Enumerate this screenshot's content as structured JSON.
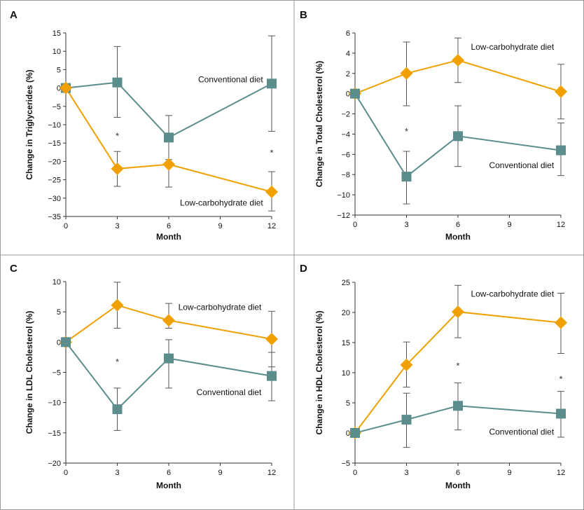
{
  "colors": {
    "conventional": "#5b8d8c",
    "low_carb": "#f0a000",
    "error_bar": "#555555",
    "axis": "#333333",
    "frame": "#999999"
  },
  "markers": {
    "conventional": "square",
    "low_carb": "diamond"
  },
  "chart_data": [
    {
      "type": "line",
      "panel": "A",
      "xlabel": "Month",
      "ylabel": "Change in Triglycerides (%)",
      "x": [
        0,
        3,
        6,
        12
      ],
      "xticks": [
        0,
        3,
        6,
        9,
        12
      ],
      "xlim": [
        0,
        12
      ],
      "ylim": [
        -35,
        15
      ],
      "yticks": [
        15,
        10,
        5,
        0,
        -5,
        -10,
        -15,
        -20,
        -25,
        -30,
        -35
      ],
      "series": [
        {
          "key": "conventional",
          "name": "Conventional diet",
          "values": [
            0,
            1.5,
            -13.5,
            1.2
          ],
          "err_low": [
            0,
            -8,
            -19.5,
            -11.8
          ],
          "err_high": [
            0,
            11.3,
            -7.5,
            14.2
          ]
        },
        {
          "key": "low_carb",
          "name": "Low-carbohydrate diet",
          "values": [
            0,
            -22,
            -20.8,
            -28.3
          ],
          "err_low": [
            0,
            -26.8,
            -27,
            -33.5
          ],
          "err_high": [
            0,
            -17.3,
            -14.5,
            -22.8
          ]
        }
      ],
      "significance": [
        {
          "x": 3,
          "y": -13,
          "text": "*"
        },
        {
          "x": 12,
          "y": -17.5,
          "text": "*"
        }
      ],
      "labels": [
        {
          "key": "conventional",
          "text": "Conventional diet",
          "x": 11.5,
          "y": 2.3,
          "anchor": "end"
        },
        {
          "key": "low_carb",
          "text": "Low-carbohydrate diet",
          "x": 11.5,
          "y": -31.3,
          "anchor": "end"
        }
      ]
    },
    {
      "type": "line",
      "panel": "B",
      "xlabel": "Month",
      "ylabel": "Change in Total Cholesterol (%)",
      "x": [
        0,
        3,
        6,
        12
      ],
      "xticks": [
        0,
        3,
        6,
        9,
        12
      ],
      "xlim": [
        0,
        12
      ],
      "ylim": [
        -12,
        6
      ],
      "yticks": [
        6,
        4,
        2,
        0,
        -2,
        -4,
        -6,
        -8,
        -10,
        -12
      ],
      "series": [
        {
          "key": "low_carb",
          "name": "Low-carbohydrate diet",
          "values": [
            0,
            2,
            3.3,
            0.2
          ],
          "err_low": [
            0,
            -1.2,
            1.1,
            -2.5
          ],
          "err_high": [
            0,
            5.1,
            5.5,
            2.9
          ]
        },
        {
          "key": "conventional",
          "name": "Conventional diet",
          "values": [
            0,
            -8.2,
            -4.2,
            -5.6
          ],
          "err_low": [
            0,
            -10.9,
            -7.2,
            -8.1
          ],
          "err_high": [
            0,
            -5.7,
            -1.2,
            -2.9
          ]
        }
      ],
      "significance": [
        {
          "x": 3,
          "y": -3.7,
          "text": "*"
        }
      ],
      "labels": [
        {
          "key": "low_carb",
          "text": "Low-carbohydrate diet",
          "x": 11.6,
          "y": 4.6,
          "anchor": "end"
        },
        {
          "key": "conventional",
          "text": "Conventional diet",
          "x": 11.6,
          "y": -7.1,
          "anchor": "end"
        }
      ]
    },
    {
      "type": "line",
      "panel": "C",
      "xlabel": "Month",
      "ylabel": "Change in LDL Cholesterol (%)",
      "x": [
        0,
        3,
        6,
        12
      ],
      "xticks": [
        0,
        3,
        6,
        9,
        12
      ],
      "xlim": [
        0,
        12
      ],
      "ylim": [
        -20,
        10
      ],
      "yticks": [
        10,
        5,
        0,
        -5,
        -10,
        -15,
        -20
      ],
      "series": [
        {
          "key": "low_carb",
          "name": "Low-carbohydrate diet",
          "values": [
            0,
            6.1,
            3.6,
            0.5
          ],
          "err_low": [
            0,
            2.3,
            2.3,
            -4.1
          ],
          "err_high": [
            0,
            9.9,
            6.4,
            5.1
          ]
        },
        {
          "key": "conventional",
          "name": "Conventional diet",
          "values": [
            0,
            -11.1,
            -2.7,
            -5.6
          ],
          "err_low": [
            0,
            -14.6,
            -7.6,
            -9.7
          ],
          "err_high": [
            0,
            -7.6,
            0.4,
            -1.7
          ]
        }
      ],
      "significance": [
        {
          "x": 3,
          "y": -3.2,
          "text": "*"
        }
      ],
      "labels": [
        {
          "key": "low_carb",
          "text": "Low-carbohydrate diet",
          "x": 11.4,
          "y": 5.8,
          "anchor": "end"
        },
        {
          "key": "conventional",
          "text": "Conventional diet",
          "x": 11.4,
          "y": -8.3,
          "anchor": "end"
        }
      ]
    },
    {
      "type": "line",
      "panel": "D",
      "xlabel": "Month",
      "ylabel": "Change in HDL Cholesterol (%)",
      "x": [
        0,
        3,
        6,
        12
      ],
      "xticks": [
        0,
        3,
        6,
        9,
        12
      ],
      "xlim": [
        0,
        12
      ],
      "ylim": [
        -5,
        25
      ],
      "yticks": [
        25,
        20,
        15,
        10,
        5,
        0,
        -5
      ],
      "series": [
        {
          "key": "low_carb",
          "name": "Low-carbohydrate diet",
          "values": [
            0,
            11.3,
            20.1,
            18.3
          ],
          "err_low": [
            0,
            7.6,
            15.8,
            13.2
          ],
          "err_high": [
            0,
            15.1,
            24.5,
            23.2
          ]
        },
        {
          "key": "conventional",
          "name": "Conventional diet",
          "values": [
            0,
            2.2,
            4.5,
            3.2
          ],
          "err_low": [
            0,
            -2.4,
            0.5,
            -0.7
          ],
          "err_high": [
            0,
            6.6,
            8.3,
            6.9
          ]
        }
      ],
      "significance": [
        {
          "x": 6,
          "y": 11.2,
          "text": "*"
        },
        {
          "x": 12,
          "y": 9.0,
          "text": "*"
        }
      ],
      "labels": [
        {
          "key": "low_carb",
          "text": "Low-carbohydrate diet",
          "x": 11.6,
          "y": 23.1,
          "anchor": "end"
        },
        {
          "key": "conventional",
          "text": "Conventional diet",
          "x": 11.6,
          "y": 0.2,
          "anchor": "end"
        }
      ]
    }
  ]
}
